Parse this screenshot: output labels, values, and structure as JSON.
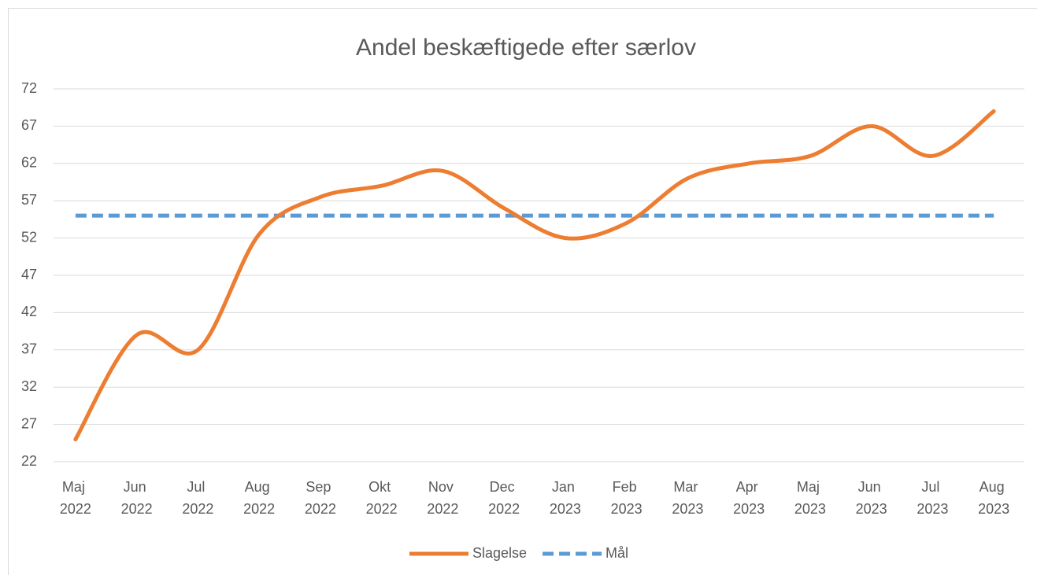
{
  "chart_data": {
    "type": "line",
    "title": "Andel beskæftigede efter særlov",
    "categories": [
      "Maj 2022",
      "Jun 2022",
      "Jul 2022",
      "Aug 2022",
      "Sep 2022",
      "Okt 2022",
      "Nov 2022",
      "Dec 2022",
      "Jan 2023",
      "Feb 2023",
      "Mar 2023",
      "Apr 2023",
      "Maj 2023",
      "Jun 2023",
      "Jul 2023",
      "Aug 2023"
    ],
    "series": [
      {
        "name": "Slagelse",
        "color": "#ed7d31",
        "smooth": true,
        "dashed": false,
        "values": [
          25,
          39,
          37,
          52.5,
          57.5,
          59,
          61,
          56,
          52,
          54,
          60,
          62,
          63,
          67,
          63,
          69
        ]
      },
      {
        "name": "Mål",
        "color": "#5b9bd5",
        "smooth": false,
        "dashed": true,
        "values": [
          55,
          55,
          55,
          55,
          55,
          55,
          55,
          55,
          55,
          55,
          55,
          55,
          55,
          55,
          55,
          55
        ]
      }
    ],
    "ylim": [
      22,
      72
    ],
    "yticks": [
      22,
      27,
      32,
      37,
      42,
      47,
      52,
      57,
      62,
      67,
      72
    ],
    "grid": true,
    "legend": "bottom"
  }
}
